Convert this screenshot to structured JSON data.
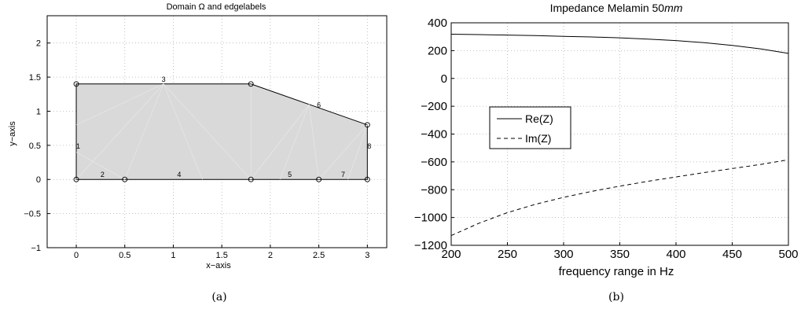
{
  "chart_data": [
    {
      "type": "diagram-plot",
      "title": "Domain Ω and edgelabels",
      "xlabel": "x−axis",
      "ylabel": "y−axis",
      "xlim": [
        -0.3,
        3.2
      ],
      "ylim": [
        -1,
        2.4
      ],
      "xticks": [
        0,
        0.5,
        1,
        1.5,
        2,
        2.5,
        3
      ],
      "xtick_labels": [
        "0",
        "0.5",
        "1",
        "1.5",
        "2",
        "2.5",
        "3"
      ],
      "yticks": [
        -1,
        -0.5,
        0,
        0.5,
        1,
        1.5,
        2
      ],
      "ytick_labels": [
        "−1",
        "−0.5",
        "0",
        "0.5",
        "1",
        "1.5",
        "2"
      ],
      "grid": true,
      "fill_color": "#d9d9d9",
      "polygon": [
        [
          0,
          0
        ],
        [
          0.5,
          0
        ],
        [
          1.8,
          0
        ],
        [
          2.5,
          0
        ],
        [
          3,
          0
        ],
        [
          3,
          0.8
        ],
        [
          1.8,
          1.4
        ],
        [
          0,
          1.4
        ]
      ],
      "vertices": [
        [
          0,
          0
        ],
        [
          0.5,
          0
        ],
        [
          1.8,
          0
        ],
        [
          2.5,
          0
        ],
        [
          3,
          0
        ],
        [
          3,
          0.8
        ],
        [
          1.8,
          1.4
        ],
        [
          0,
          1.4
        ]
      ],
      "edge_labels": [
        {
          "text": "1",
          "x": 0.02,
          "y": 0.45
        },
        {
          "text": "2",
          "x": 0.27,
          "y": 0.04
        },
        {
          "text": "3",
          "x": 0.9,
          "y": 1.43
        },
        {
          "text": "4",
          "x": 1.06,
          "y": 0.04
        },
        {
          "text": "5",
          "x": 2.2,
          "y": 0.04
        },
        {
          "text": "6",
          "x": 2.5,
          "y": 1.06
        },
        {
          "text": "7",
          "x": 2.75,
          "y": 0.04
        },
        {
          "text": "8",
          "x": 3.02,
          "y": 0.45
        }
      ],
      "caption": "(a)"
    },
    {
      "type": "line",
      "title_prefix": "Impedance Melamin 50",
      "title_unit": "mm",
      "xlabel": "frequency range in Hz",
      "ylabel": "",
      "xlim": [
        200,
        500
      ],
      "ylim": [
        -1200,
        400
      ],
      "xticks": [
        200,
        250,
        300,
        350,
        400,
        450,
        500
      ],
      "xtick_labels": [
        "200",
        "250",
        "300",
        "350",
        "400",
        "450",
        "500"
      ],
      "yticks": [
        400,
        200,
        0,
        -200,
        -400,
        -600,
        -800,
        -1000,
        -1200
      ],
      "ytick_labels": [
        "400",
        "200",
        "0",
        "−200",
        "−400",
        "−600",
        "−800",
        "−1000",
        "−1200"
      ],
      "grid": true,
      "legend_position": "middle-left",
      "x": [
        200,
        225,
        250,
        275,
        300,
        325,
        350,
        375,
        400,
        425,
        450,
        475,
        500
      ],
      "series": [
        {
          "name": "Re(Z)",
          "style": "solid",
          "values": [
            318,
            315,
            312,
            308,
            303,
            298,
            292,
            283,
            272,
            257,
            237,
            213,
            180
          ]
        },
        {
          "name": "Im(Z)",
          "style": "dashed",
          "values": [
            -1130,
            -1040,
            -965,
            -905,
            -855,
            -812,
            -774,
            -740,
            -708,
            -677,
            -648,
            -619,
            -585
          ]
        }
      ],
      "caption": "(b)"
    }
  ]
}
